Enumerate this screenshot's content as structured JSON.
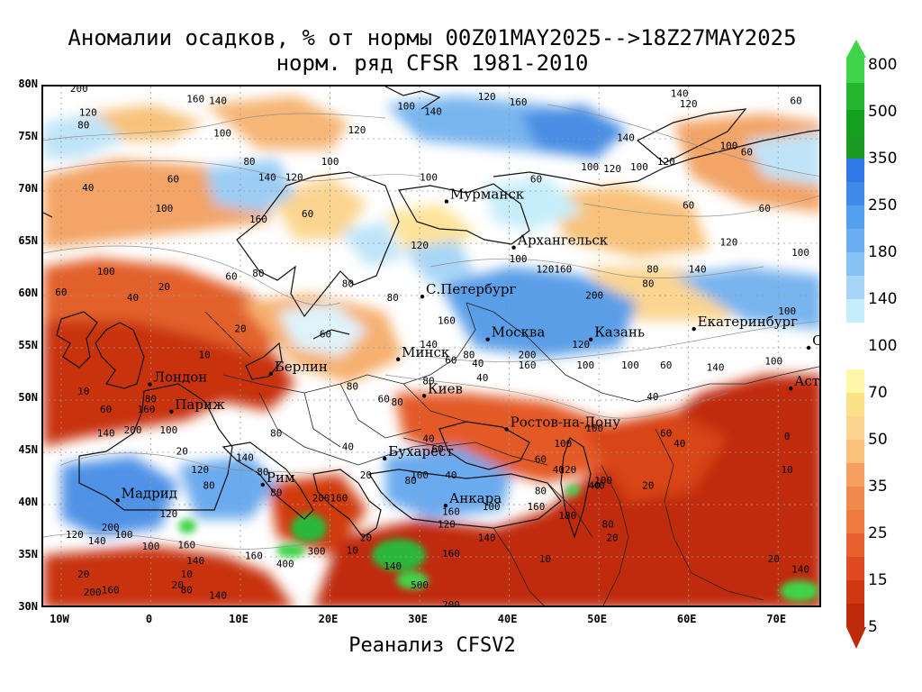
{
  "title_line1": "Аномалии осадков, % от нормы 00Z01MAY2025-->18Z27MAY2025",
  "title_line2": "норм. ряд CFSR 1981-2010",
  "footer": "Реанализ CFSV2",
  "lat_labels": [
    "80N",
    "75N",
    "70N",
    "65N",
    "60N",
    "55N",
    "50N",
    "45N",
    "40N",
    "35N",
    "30N"
  ],
  "lon_labels": [
    "10W",
    "0",
    "10E",
    "20E",
    "30E",
    "40E",
    "50E",
    "60E",
    "70E"
  ],
  "colorbar": {
    "labels": [
      "800",
      "500",
      "350",
      "250",
      "180",
      "140",
      "100",
      "70",
      "50",
      "35",
      "25",
      "15",
      "5"
    ],
    "colors": {
      "c800": "#3fd44a",
      "c500": "#26b52e",
      "c350": "#12a01e",
      "c250top": "#2f78e6",
      "c250": "#3d8ae8",
      "c180": "#6aacf0",
      "c140": "#a8d4f8",
      "c120": "#c6eefa",
      "c100": "#ffffff",
      "c70": "#fff7a8",
      "c60": "#fde08a",
      "c50": "#f9c17a",
      "c35": "#f5a060",
      "c25": "#ef7a3e",
      "c15": "#e04a20",
      "c5": "#bf2a0a"
    }
  },
  "cities": [
    {
      "name": "Мурманск",
      "lon": 33,
      "lat": 69.0
    },
    {
      "name": "Архангельск",
      "lon": 40.5,
      "lat": 64.6
    },
    {
      "name": "С.Петербург",
      "lon": 30.3,
      "lat": 59.9
    },
    {
      "name": "Москва",
      "lon": 37.6,
      "lat": 55.8
    },
    {
      "name": "Казань",
      "lon": 49.1,
      "lat": 55.8
    },
    {
      "name": "Екатеринбург",
      "lon": 60.6,
      "lat": 56.8
    },
    {
      "name": "Минск",
      "lon": 27.6,
      "lat": 53.9
    },
    {
      "name": "Омск",
      "lon": 73.4,
      "lat": 55.0
    },
    {
      "name": "Берлин",
      "lon": 13.4,
      "lat": 52.5
    },
    {
      "name": "Лондон",
      "lon": -0.1,
      "lat": 51.5
    },
    {
      "name": "Киев",
      "lon": 30.5,
      "lat": 50.4
    },
    {
      "name": "Париж",
      "lon": 2.3,
      "lat": 48.9
    },
    {
      "name": "Астана",
      "lon": 71.4,
      "lat": 51.1
    },
    {
      "name": "Ростов-на-Дону",
      "lon": 39.7,
      "lat": 47.2
    },
    {
      "name": "Бухарест",
      "lon": 26.1,
      "lat": 44.4
    },
    {
      "name": "Рим",
      "lon": 12.5,
      "lat": 41.9
    },
    {
      "name": "Мадрид",
      "lon": -3.7,
      "lat": 40.4
    },
    {
      "name": "Анкара",
      "lon": 32.9,
      "lat": 39.9
    }
  ],
  "contour_values": [
    {
      "v": "200",
      "lon": -8,
      "lat": 79.5
    },
    {
      "v": "160",
      "lon": 5,
      "lat": 78.5
    },
    {
      "v": "140",
      "lon": 7.5,
      "lat": 78.3
    },
    {
      "v": "120",
      "lon": -7,
      "lat": 77.2
    },
    {
      "v": "80",
      "lon": -7.5,
      "lat": 76.0
    },
    {
      "v": "100",
      "lon": 8,
      "lat": 75.2
    },
    {
      "v": "80",
      "lon": 11,
      "lat": 72.5
    },
    {
      "v": "100",
      "lon": 20,
      "lat": 72.5
    },
    {
      "v": "40",
      "lon": -7,
      "lat": 70.0
    },
    {
      "v": "60",
      "lon": 2.5,
      "lat": 70.8
    },
    {
      "v": "140",
      "lon": 13,
      "lat": 71.0
    },
    {
      "v": "120",
      "lon": 16,
      "lat": 71.0
    },
    {
      "v": "100",
      "lon": 1.5,
      "lat": 68.0
    },
    {
      "v": "160",
      "lon": 12,
      "lat": 67.0
    },
    {
      "v": "60",
      "lon": 17.5,
      "lat": 67.5
    },
    {
      "v": "100",
      "lon": -5,
      "lat": 62.0
    },
    {
      "v": "60",
      "lon": -10,
      "lat": 60.0
    },
    {
      "v": "20",
      "lon": 1.5,
      "lat": 60.5
    },
    {
      "v": "40",
      "lon": -2,
      "lat": 59.5
    },
    {
      "v": "60",
      "lon": 9,
      "lat": 61.5
    },
    {
      "v": "80",
      "lon": 12,
      "lat": 61.8
    },
    {
      "v": "80",
      "lon": 22,
      "lat": 60.8
    },
    {
      "v": "20",
      "lon": 10,
      "lat": 56.5
    },
    {
      "v": "10",
      "lon": 6,
      "lat": 54.0
    },
    {
      "v": "10",
      "lon": -7.5,
      "lat": 50.5
    },
    {
      "v": "60",
      "lon": -5,
      "lat": 48.8
    },
    {
      "v": "160",
      "lon": -0.5,
      "lat": 48.8
    },
    {
      "v": "80",
      "lon": 0,
      "lat": 49.8
    },
    {
      "v": "140",
      "lon": -5,
      "lat": 46.5
    },
    {
      "v": "200",
      "lon": -2,
      "lat": 46.8
    },
    {
      "v": "100",
      "lon": 2,
      "lat": 46.8
    },
    {
      "v": "120",
      "lon": 5.5,
      "lat": 43.0
    },
    {
      "v": "80",
      "lon": 6.5,
      "lat": 41.5
    },
    {
      "v": "120",
      "lon": 2,
      "lat": 38.8
    },
    {
      "v": "200",
      "lon": -4.5,
      "lat": 37.5
    },
    {
      "v": "100",
      "lon": -3,
      "lat": 36.8
    },
    {
      "v": "120",
      "lon": -8.5,
      "lat": 36.8
    },
    {
      "v": "140",
      "lon": -6,
      "lat": 36.2
    },
    {
      "v": "100",
      "lon": 0,
      "lat": 35.7
    },
    {
      "v": "160",
      "lon": 4,
      "lat": 35.8
    },
    {
      "v": "20",
      "lon": -7.5,
      "lat": 33.0
    },
    {
      "v": "10",
      "lon": 4,
      "lat": 33.0
    },
    {
      "v": "140",
      "lon": 5,
      "lat": 34.3
    },
    {
      "v": "20",
      "lon": 3,
      "lat": 32.0
    },
    {
      "v": "80",
      "lon": 4,
      "lat": 31.5
    },
    {
      "v": "200",
      "lon": -6.5,
      "lat": 31.3
    },
    {
      "v": "160",
      "lon": -4.5,
      "lat": 31.5
    },
    {
      "v": "140",
      "lon": 7.5,
      "lat": 31.0
    },
    {
      "v": "160",
      "lon": 11.5,
      "lat": 34.8
    },
    {
      "v": "400",
      "lon": 15,
      "lat": 34.0
    },
    {
      "v": "300",
      "lon": 18.5,
      "lat": 35.2
    },
    {
      "v": "10",
      "lon": 22.5,
      "lat": 35.3
    },
    {
      "v": "140",
      "lon": 27,
      "lat": 33.8
    },
    {
      "v": "500",
      "lon": 30,
      "lat": 32.0
    },
    {
      "v": "200",
      "lon": 33.5,
      "lat": 30.1
    },
    {
      "v": "20",
      "lon": 24,
      "lat": 36.5
    },
    {
      "v": "160",
      "lon": 33.5,
      "lat": 35.0
    },
    {
      "v": "140",
      "lon": 37.5,
      "lat": 36.5
    },
    {
      "v": "120",
      "lon": 33,
      "lat": 37.8
    },
    {
      "v": "160",
      "lon": 33.5,
      "lat": 39.0
    },
    {
      "v": "100",
      "lon": 38,
      "lat": 39.5
    },
    {
      "v": "160",
      "lon": 43,
      "lat": 39.5
    },
    {
      "v": "180",
      "lon": 46.5,
      "lat": 38.6
    },
    {
      "v": "80",
      "lon": 51,
      "lat": 37.8
    },
    {
      "v": "20",
      "lon": 51.5,
      "lat": 36.5
    },
    {
      "v": "10",
      "lon": 44,
      "lat": 34.5
    },
    {
      "v": "40",
      "lon": 50,
      "lat": 41.5
    },
    {
      "v": "80",
      "lon": 43.5,
      "lat": 41.0
    },
    {
      "v": "40",
      "lon": 33.5,
      "lat": 42.5
    },
    {
      "v": "20",
      "lon": 24,
      "lat": 42.5
    },
    {
      "v": "200",
      "lon": 19,
      "lat": 40.3
    },
    {
      "v": "160",
      "lon": 21,
      "lat": 40.3
    },
    {
      "v": "80",
      "lon": 14,
      "lat": 40.8
    },
    {
      "v": "80",
      "lon": 12.5,
      "lat": 42.8
    },
    {
      "v": "140",
      "lon": 10.5,
      "lat": 44.2
    },
    {
      "v": "20",
      "lon": 3.5,
      "lat": 44.8
    },
    {
      "v": "80",
      "lon": 14,
      "lat": 46.5
    },
    {
      "v": "40",
      "lon": 22,
      "lat": 45.2
    },
    {
      "v": "80",
      "lon": 27.5,
      "lat": 49.5
    },
    {
      "v": "60",
      "lon": 26,
      "lat": 49.8
    },
    {
      "v": "80",
      "lon": 22.5,
      "lat": 51.0
    },
    {
      "v": "80",
      "lon": 31,
      "lat": 51.5
    },
    {
      "v": "60",
      "lon": 33.5,
      "lat": 53.5
    },
    {
      "v": "80",
      "lon": 35.5,
      "lat": 54.0
    },
    {
      "v": "40",
      "lon": 36.5,
      "lat": 53.2
    },
    {
      "v": "140",
      "lon": 31,
      "lat": 55.0
    },
    {
      "v": "160",
      "lon": 33,
      "lat": 57.3
    },
    {
      "v": "80",
      "lon": 27,
      "lat": 59.5
    },
    {
      "v": "60",
      "lon": 19.5,
      "lat": 56.0
    },
    {
      "v": "200",
      "lon": 42,
      "lat": 54.0
    },
    {
      "v": "160",
      "lon": 42,
      "lat": 53.0
    },
    {
      "v": "120",
      "lon": 48,
      "lat": 55.0
    },
    {
      "v": "100",
      "lon": 48.5,
      "lat": 53.0
    },
    {
      "v": "100",
      "lon": 53.5,
      "lat": 53.0
    },
    {
      "v": "60",
      "lon": 57.5,
      "lat": 53.0
    },
    {
      "v": "140",
      "lon": 63,
      "lat": 52.8
    },
    {
      "v": "100",
      "lon": 69.5,
      "lat": 53.4
    },
    {
      "v": "40",
      "lon": 56,
      "lat": 50.0
    },
    {
      "v": "100",
      "lon": 49.5,
      "lat": 47.0
    },
    {
      "v": "100",
      "lon": 46,
      "lat": 45.5
    },
    {
      "v": "60",
      "lon": 57.5,
      "lat": 46.5
    },
    {
      "v": "40",
      "lon": 59,
      "lat": 45.5
    },
    {
      "v": "0",
      "lon": 71,
      "lat": 46.2
    },
    {
      "v": "10",
      "lon": 71,
      "lat": 43.0
    },
    {
      "v": "20",
      "lon": 55.5,
      "lat": 41.5
    },
    {
      "v": "40",
      "lon": 49.5,
      "lat": 41.5
    },
    {
      "v": "100",
      "lon": 50.5,
      "lat": 42.0
    },
    {
      "v": "20",
      "lon": 69.5,
      "lat": 34.5
    },
    {
      "v": "140",
      "lon": 72.5,
      "lat": 33.5
    },
    {
      "v": "120",
      "lon": 37.5,
      "lat": 78.7
    },
    {
      "v": "160",
      "lon": 41,
      "lat": 78.2
    },
    {
      "v": "100",
      "lon": 28.5,
      "lat": 77.8
    },
    {
      "v": "140",
      "lon": 31.5,
      "lat": 77.3
    },
    {
      "v": "120",
      "lon": 23,
      "lat": 75.5
    },
    {
      "v": "100",
      "lon": 31,
      "lat": 71.0
    },
    {
      "v": "60",
      "lon": 43,
      "lat": 70.8
    },
    {
      "v": "100",
      "lon": 49,
      "lat": 72.0
    },
    {
      "v": "120",
      "lon": 51.5,
      "lat": 71.8
    },
    {
      "v": "140",
      "lon": 53,
      "lat": 74.8
    },
    {
      "v": "140",
      "lon": 59,
      "lat": 79.0
    },
    {
      "v": "120",
      "lon": 60,
      "lat": 78.0
    },
    {
      "v": "100",
      "lon": 64.5,
      "lat": 74.0
    },
    {
      "v": "60",
      "lon": 66.5,
      "lat": 73.4
    },
    {
      "v": "60",
      "lon": 72,
      "lat": 78.3
    },
    {
      "v": "60",
      "lon": 60,
      "lat": 68.3
    },
    {
      "v": "60",
      "lon": 68.5,
      "lat": 68.0
    },
    {
      "v": "120",
      "lon": 57.5,
      "lat": 72.5
    },
    {
      "v": "100",
      "lon": 54.5,
      "lat": 72.0
    },
    {
      "v": "120",
      "lon": 64.5,
      "lat": 64.8
    },
    {
      "v": "100",
      "lon": 72.5,
      "lat": 63.8
    },
    {
      "v": "120",
      "lon": 30,
      "lat": 64.5
    },
    {
      "v": "100",
      "lon": 41,
      "lat": 63.2
    },
    {
      "v": "120",
      "lon": 44,
      "lat": 62.2
    },
    {
      "v": "160",
      "lon": 46,
      "lat": 62.2
    },
    {
      "v": "200",
      "lon": 49.5,
      "lat": 59.7
    },
    {
      "v": "80",
      "lon": 56,
      "lat": 62.2
    },
    {
      "v": "140",
      "lon": 61,
      "lat": 62.2
    },
    {
      "v": "80",
      "lon": 55.5,
      "lat": 60.8
    },
    {
      "v": "100",
      "lon": 71,
      "lat": 58.2
    },
    {
      "v": "40",
      "lon": 37,
      "lat": 51.8
    },
    {
      "v": "60",
      "lon": 43.5,
      "lat": 44.0
    },
    {
      "v": "40",
      "lon": 45.5,
      "lat": 43.0
    },
    {
      "v": "120",
      "lon": 46.5,
      "lat": 43.0
    },
    {
      "v": "40",
      "lon": 31,
      "lat": 46.0
    },
    {
      "v": "60",
      "lon": 32,
      "lat": 45.0
    },
    {
      "v": "80",
      "lon": 29,
      "lat": 42.0
    },
    {
      "v": "100",
      "lon": 30,
      "lat": 42.5
    }
  ]
}
